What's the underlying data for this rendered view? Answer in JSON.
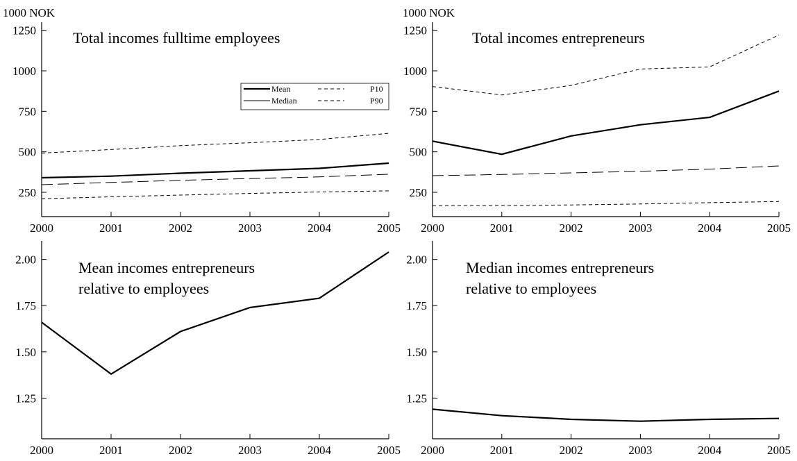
{
  "chart_data": [
    {
      "type": "line",
      "title": [
        "Total incomes fulltime employees"
      ],
      "ylabel": "1000 NOK",
      "x": [
        2000,
        2001,
        2002,
        2003,
        2004,
        2005
      ],
      "xlim": [
        2000,
        2005
      ],
      "ylim": [
        100,
        1300
      ],
      "yticks": [
        250,
        500,
        750,
        1000,
        1250
      ],
      "grid": false,
      "legend_position": "top-right",
      "legend_entries": [
        "Mean",
        "Median",
        "P10",
        "P90"
      ],
      "series": [
        {
          "name": "Mean",
          "style": "solid-thick",
          "values": [
            340,
            350,
            368,
            383,
            398,
            430
          ]
        },
        {
          "name": "Median",
          "style": "long-dash",
          "values": [
            297,
            311,
            324,
            335,
            345,
            362
          ]
        },
        {
          "name": "P10",
          "style": "short-dash",
          "values": [
            210,
            222,
            233,
            243,
            252,
            259
          ]
        },
        {
          "name": "P90",
          "style": "short-dash",
          "values": [
            492,
            514,
            538,
            556,
            576,
            614
          ]
        }
      ]
    },
    {
      "type": "line",
      "title": [
        "Total incomes entrepreneurs"
      ],
      "ylabel": "1000 NOK",
      "x": [
        2000,
        2001,
        2002,
        2003,
        2004,
        2005
      ],
      "xlim": [
        2000,
        2005
      ],
      "ylim": [
        100,
        1300
      ],
      "yticks": [
        250,
        500,
        750,
        1000,
        1250
      ],
      "grid": false,
      "series": [
        {
          "name": "Mean",
          "style": "solid-thick",
          "values": [
            566,
            485,
            598,
            667,
            713,
            875
          ]
        },
        {
          "name": "Median",
          "style": "long-dash",
          "values": [
            353,
            360,
            370,
            380,
            393,
            413
          ]
        },
        {
          "name": "P10",
          "style": "short-dash",
          "values": [
            167,
            168,
            172,
            178,
            186,
            193
          ]
        },
        {
          "name": "P90",
          "style": "short-dash",
          "values": [
            903,
            851,
            910,
            1011,
            1024,
            1221
          ]
        }
      ]
    },
    {
      "type": "line",
      "title": [
        "Mean incomes entrepreneurs",
        "relative to employees"
      ],
      "ylabel": "",
      "x": [
        2000,
        2001,
        2002,
        2003,
        2004,
        2005
      ],
      "xlim": [
        2000,
        2005
      ],
      "ylim": [
        1.03,
        2.1
      ],
      "yticks": [
        1.25,
        1.5,
        1.75,
        2.0
      ],
      "ytick_labels": [
        "1.25",
        "1.50",
        "1.75",
        "2.00"
      ],
      "grid": false,
      "series": [
        {
          "name": "Mean",
          "style": "solid-thick",
          "values": [
            1.66,
            1.38,
            1.61,
            1.74,
            1.79,
            2.04
          ]
        }
      ]
    },
    {
      "type": "line",
      "title": [
        "Median incomes entrepreneurs",
        "relative to employees"
      ],
      "ylabel": "",
      "x": [
        2000,
        2001,
        2002,
        2003,
        2004,
        2005
      ],
      "xlim": [
        2000,
        2005
      ],
      "ylim": [
        1.03,
        2.1
      ],
      "yticks": [
        1.25,
        1.5,
        1.75,
        2.0
      ],
      "ytick_labels": [
        "1.25",
        "1.50",
        "1.75",
        "2.00"
      ],
      "grid": false,
      "series": [
        {
          "name": "Median",
          "style": "solid-thick",
          "values": [
            1.19,
            1.155,
            1.135,
            1.125,
            1.135,
            1.14
          ]
        }
      ]
    }
  ]
}
